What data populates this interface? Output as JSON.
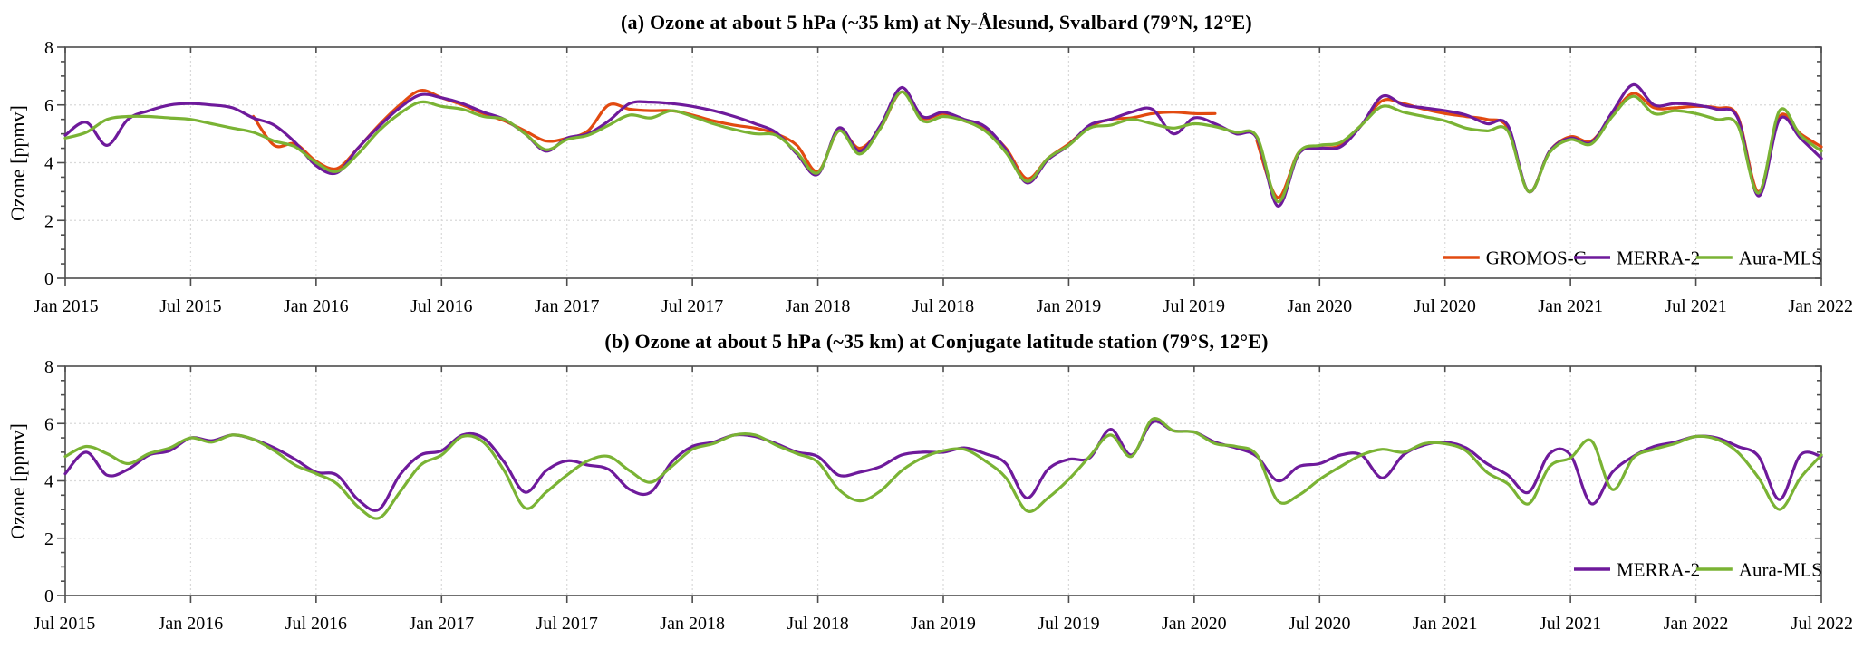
{
  "figure": {
    "background": "#ffffff",
    "axis_color": "#4d4d4d",
    "grid_color": "#d9d9d9",
    "text_color": "#000000"
  },
  "chart_data": [
    {
      "type": "line",
      "panel": "a",
      "title": "(a) Ozone at about 5 hPa (~35 km) at Ny-Ålesund, Svalbard (79°N, 12°E)",
      "xlabel": "",
      "ylabel": "Ozone [ppmv]",
      "ylim": [
        0,
        8
      ],
      "y_ticks": [
        0,
        2,
        4,
        6,
        8
      ],
      "y_minor_step": 0.5,
      "grid": "dotted-major",
      "legend_position": "inside-lower-right",
      "x_index_range": [
        0,
        84
      ],
      "x_tick_indices": [
        0,
        6,
        12,
        18,
        24,
        30,
        36,
        42,
        48,
        54,
        60,
        66,
        72,
        78,
        84
      ],
      "x_tick_labels": [
        "Jan 2015",
        "Jul 2015",
        "Jan 2016",
        "Jul 2016",
        "Jan 2017",
        "Jul 2017",
        "Jan 2018",
        "Jul 2018",
        "Jan 2019",
        "Jul 2019",
        "Jan 2020",
        "Jul 2020",
        "Jan 2021",
        "Jul 2021",
        "Jan 2022"
      ],
      "series": [
        {
          "name": "GROMOS-C",
          "color": "#E24A10",
          "values": [
            null,
            null,
            null,
            null,
            null,
            null,
            null,
            null,
            null,
            5.6,
            4.6,
            4.65,
            4.05,
            3.8,
            4.5,
            5.3,
            6.0,
            6.5,
            6.25,
            6.0,
            5.7,
            5.45,
            5.1,
            4.75,
            4.85,
            5.1,
            6.0,
            5.85,
            5.8,
            5.8,
            5.65,
            5.45,
            5.3,
            5.2,
            5.0,
            4.6,
            3.7,
            5.1,
            4.5,
            5.2,
            6.45,
            5.55,
            5.7,
            5.45,
            5.15,
            4.5,
            3.45,
            4.15,
            4.65,
            5.25,
            5.5,
            5.55,
            5.7,
            5.75,
            5.7,
            5.7,
            null,
            4.75,
            2.8,
            4.35,
            4.5,
            4.6,
            5.3,
            6.15,
            6.05,
            5.85,
            5.7,
            5.6,
            5.5,
            5.2,
            3.0,
            4.4,
            4.9,
            4.75,
            5.65,
            6.4,
            5.9,
            5.9,
            5.95,
            5.9,
            5.6,
            3.0,
            5.6,
            5.0,
            4.55
          ]
        },
        {
          "name": "MERRA-2",
          "color": "#6E1A9B",
          "values": [
            4.95,
            5.4,
            4.6,
            5.5,
            5.8,
            6.0,
            6.05,
            6.0,
            5.9,
            5.55,
            5.3,
            4.7,
            3.9,
            3.65,
            4.5,
            5.25,
            5.9,
            6.35,
            6.25,
            6.05,
            5.75,
            5.5,
            5.0,
            4.4,
            4.85,
            5.0,
            5.45,
            6.05,
            6.1,
            6.05,
            5.95,
            5.8,
            5.6,
            5.35,
            5.05,
            4.3,
            3.6,
            5.2,
            4.4,
            5.3,
            6.6,
            5.6,
            5.75,
            5.5,
            5.25,
            4.45,
            3.3,
            4.1,
            4.6,
            5.3,
            5.5,
            5.75,
            5.85,
            5.0,
            5.55,
            5.35,
            5.0,
            4.85,
            2.5,
            4.3,
            4.5,
            4.55,
            5.3,
            6.3,
            6.0,
            5.9,
            5.8,
            5.65,
            5.35,
            5.3,
            3.0,
            4.4,
            4.85,
            4.7,
            5.75,
            6.7,
            6.0,
            6.05,
            6.0,
            5.85,
            5.55,
            2.85,
            5.5,
            4.85,
            4.15
          ]
        },
        {
          "name": "Aura-MLS",
          "color": "#7AB334",
          "values": [
            4.85,
            5.05,
            5.5,
            5.6,
            5.6,
            5.55,
            5.5,
            5.35,
            5.2,
            5.05,
            4.75,
            4.55,
            4.0,
            3.7,
            4.3,
            5.1,
            5.7,
            6.1,
            5.95,
            5.85,
            5.6,
            5.5,
            5.0,
            4.45,
            4.8,
            4.95,
            5.3,
            5.65,
            5.55,
            5.8,
            5.6,
            5.35,
            5.15,
            5.0,
            4.95,
            4.35,
            3.65,
            5.1,
            4.3,
            5.2,
            6.45,
            5.45,
            5.6,
            5.45,
            5.1,
            4.35,
            3.35,
            4.15,
            4.6,
            5.2,
            5.3,
            5.5,
            5.35,
            5.2,
            5.35,
            5.25,
            5.05,
            4.9,
            2.65,
            4.35,
            4.6,
            4.7,
            5.3,
            5.95,
            5.75,
            5.6,
            5.45,
            5.2,
            5.1,
            5.1,
            3.0,
            4.35,
            4.8,
            4.65,
            5.6,
            6.3,
            5.7,
            5.8,
            5.7,
            5.5,
            5.3,
            2.95,
            5.8,
            4.95,
            4.4
          ]
        }
      ]
    },
    {
      "type": "line",
      "panel": "b",
      "title": "(b) Ozone at about 5 hPa (~35 km) at Conjugate latitude station (79°S, 12°E)",
      "xlabel": "",
      "ylabel": "Ozone [ppmv]",
      "ylim": [
        0,
        8
      ],
      "y_ticks": [
        0,
        2,
        4,
        6,
        8
      ],
      "y_minor_step": 0.5,
      "grid": "dotted-major",
      "legend_position": "inside-lower-right",
      "x_index_range": [
        0,
        84
      ],
      "x_tick_indices": [
        0,
        6,
        12,
        18,
        24,
        30,
        36,
        42,
        48,
        54,
        60,
        66,
        72,
        78,
        84
      ],
      "x_tick_labels": [
        "Jul 2015",
        "Jan 2016",
        "Jul 2016",
        "Jan 2017",
        "Jul 2017",
        "Jan 2018",
        "Jul 2018",
        "Jan 2019",
        "Jul 2019",
        "Jan 2020",
        "Jul 2020",
        "Jan 2021",
        "Jul 2021",
        "Jan 2022",
        "Jul 2022"
      ],
      "series": [
        {
          "name": "MERRA-2",
          "color": "#6E1A9B",
          "values": [
            4.25,
            5.0,
            4.2,
            4.4,
            4.9,
            5.05,
            5.5,
            5.4,
            5.6,
            5.45,
            5.15,
            4.75,
            4.3,
            4.2,
            3.35,
            3.0,
            4.2,
            4.9,
            5.05,
            5.6,
            5.5,
            4.65,
            3.6,
            4.35,
            4.7,
            4.55,
            4.4,
            3.7,
            3.6,
            4.65,
            5.2,
            5.35,
            5.6,
            5.55,
            5.3,
            5.0,
            4.85,
            4.2,
            4.3,
            4.5,
            4.9,
            5.0,
            5.0,
            5.15,
            4.95,
            4.6,
            3.4,
            4.4,
            4.75,
            4.8,
            5.8,
            4.9,
            6.05,
            5.75,
            5.7,
            5.35,
            5.15,
            4.85,
            4.0,
            4.5,
            4.6,
            4.9,
            4.9,
            4.1,
            4.9,
            5.25,
            5.35,
            5.15,
            4.6,
            4.2,
            3.6,
            4.95,
            4.9,
            3.2,
            4.3,
            4.85,
            5.2,
            5.35,
            5.55,
            5.5,
            5.2,
            4.85,
            3.35,
            4.9,
            4.85
          ]
        },
        {
          "name": "Aura-MLS",
          "color": "#7AB334",
          "values": [
            4.85,
            5.2,
            4.95,
            4.6,
            4.95,
            5.15,
            5.5,
            5.35,
            5.6,
            5.45,
            5.05,
            4.55,
            4.25,
            3.9,
            3.1,
            2.7,
            3.6,
            4.55,
            4.9,
            5.55,
            5.35,
            4.35,
            3.05,
            3.6,
            4.2,
            4.7,
            4.85,
            4.35,
            3.95,
            4.5,
            5.1,
            5.3,
            5.6,
            5.6,
            5.25,
            4.95,
            4.65,
            3.7,
            3.3,
            3.65,
            4.35,
            4.8,
            5.05,
            5.1,
            4.7,
            4.1,
            2.95,
            3.4,
            4.05,
            4.85,
            5.6,
            4.85,
            6.15,
            5.75,
            5.7,
            5.3,
            5.2,
            4.9,
            3.3,
            3.5,
            4.05,
            4.5,
            4.9,
            5.1,
            5.0,
            5.3,
            5.3,
            5.05,
            4.3,
            3.9,
            3.2,
            4.5,
            4.8,
            5.4,
            3.7,
            4.8,
            5.1,
            5.3,
            5.55,
            5.45,
            5.0,
            4.1,
            3.0,
            4.1,
            4.9
          ]
        }
      ]
    }
  ]
}
